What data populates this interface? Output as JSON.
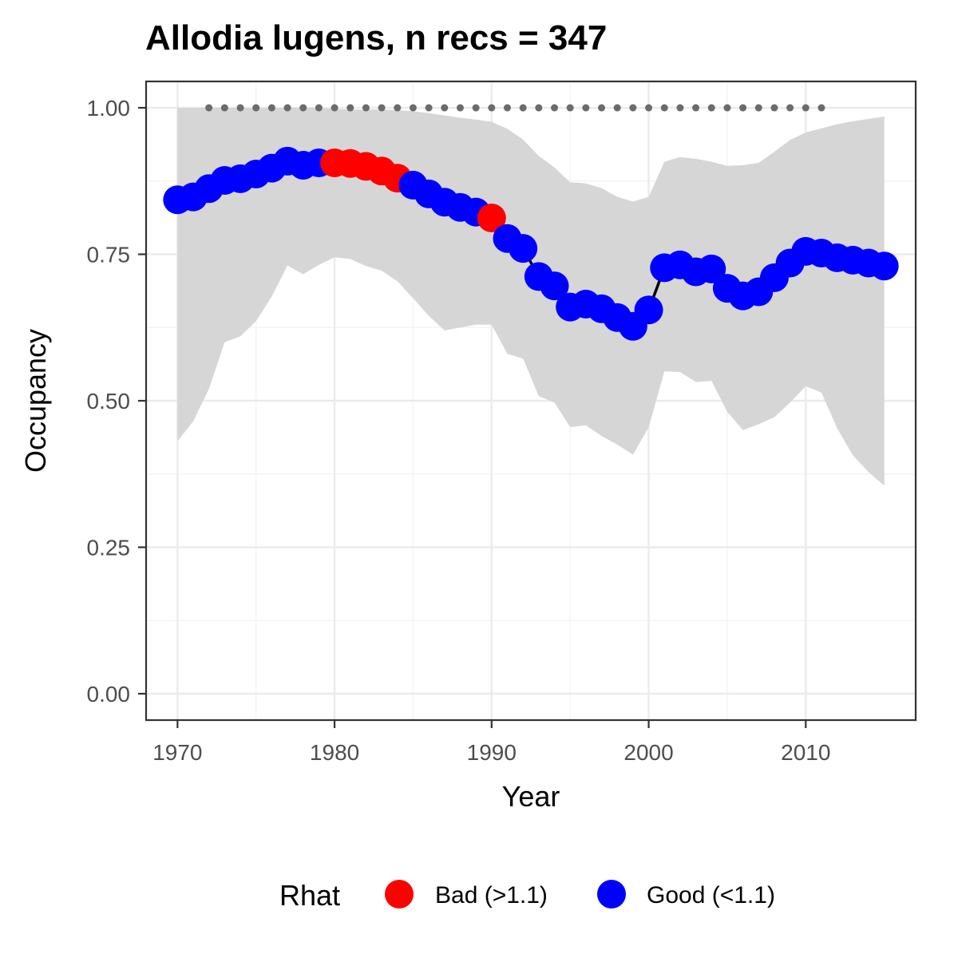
{
  "chart_data": {
    "type": "line",
    "title": "Allodia lugens, n recs = 347",
    "xlabel": "Year",
    "ylabel": "Occupancy",
    "xlim": [
      1968,
      2017
    ],
    "ylim": [
      -0.045,
      1.045
    ],
    "x_ticks": [
      1970,
      1980,
      1990,
      2000,
      2010
    ],
    "x_tick_labels": [
      "1970",
      "1980",
      "1990",
      "2000",
      "2010"
    ],
    "y_ticks": [
      0,
      0.25,
      0.5,
      0.75,
      1.0
    ],
    "y_tick_labels": [
      "0.00",
      "0.25",
      "0.50",
      "0.75",
      "1.00"
    ],
    "grid": true,
    "legend": {
      "title": "Rhat",
      "position": "bottom",
      "entries": [
        {
          "label": "Bad (>1.1)",
          "color": "#ff0000"
        },
        {
          "label": "Good (<1.1)",
          "color": "#0000ff"
        }
      ]
    },
    "colors": {
      "bad": "#ff0000",
      "good": "#0000ff",
      "ribbon": "#d6d6d6",
      "line": "#000000",
      "dots": "#6b6b6b"
    },
    "years": [
      1970,
      1971,
      1972,
      1973,
      1974,
      1975,
      1976,
      1977,
      1978,
      1979,
      1980,
      1981,
      1982,
      1983,
      1984,
      1985,
      1986,
      1987,
      1988,
      1989,
      1990,
      1991,
      1992,
      1993,
      1994,
      1995,
      1996,
      1997,
      1998,
      1999,
      2000,
      2001,
      2002,
      2003,
      2004,
      2005,
      2006,
      2007,
      2008,
      2009,
      2010,
      2011,
      2012,
      2013,
      2014,
      2015
    ],
    "occupancy": [
      0.843,
      0.848,
      0.862,
      0.876,
      0.879,
      0.887,
      0.897,
      0.909,
      0.902,
      0.906,
      0.906,
      0.905,
      0.9,
      0.892,
      0.88,
      0.868,
      0.853,
      0.839,
      0.83,
      0.822,
      0.812,
      0.777,
      0.76,
      0.712,
      0.696,
      0.66,
      0.665,
      0.657,
      0.642,
      0.627,
      0.655,
      0.727,
      0.732,
      0.72,
      0.725,
      0.692,
      0.679,
      0.686,
      0.71,
      0.735,
      0.755,
      0.752,
      0.744,
      0.74,
      0.735,
      0.73
    ],
    "rhat_status": [
      "good",
      "good",
      "good",
      "good",
      "good",
      "good",
      "good",
      "good",
      "good",
      "good",
      "bad",
      "bad",
      "bad",
      "bad",
      "bad",
      "good",
      "good",
      "good",
      "good",
      "good",
      "bad",
      "good",
      "good",
      "good",
      "good",
      "good",
      "good",
      "good",
      "good",
      "good",
      "good",
      "good",
      "good",
      "good",
      "good",
      "good",
      "good",
      "good",
      "good",
      "good",
      "good",
      "good",
      "good",
      "good",
      "good",
      "good"
    ],
    "upper_ci": [
      1.0,
      1.0,
      1.0,
      1.0,
      1.0,
      1.0,
      1.0,
      1.0,
      1.0,
      1.0,
      0.998,
      0.997,
      0.997,
      0.997,
      0.996,
      0.994,
      0.991,
      0.987,
      0.983,
      0.98,
      0.976,
      0.964,
      0.946,
      0.918,
      0.898,
      0.873,
      0.871,
      0.863,
      0.848,
      0.84,
      0.848,
      0.908,
      0.916,
      0.913,
      0.908,
      0.901,
      0.902,
      0.906,
      0.925,
      0.945,
      0.958,
      0.965,
      0.972,
      0.977,
      0.981,
      0.985
    ],
    "lower_ci": [
      0.431,
      0.465,
      0.52,
      0.6,
      0.61,
      0.636,
      0.678,
      0.731,
      0.716,
      0.732,
      0.745,
      0.742,
      0.73,
      0.722,
      0.704,
      0.675,
      0.645,
      0.62,
      0.625,
      0.63,
      0.63,
      0.58,
      0.572,
      0.508,
      0.497,
      0.455,
      0.458,
      0.44,
      0.425,
      0.408,
      0.455,
      0.55,
      0.549,
      0.532,
      0.534,
      0.481,
      0.45,
      0.46,
      0.472,
      0.497,
      0.525,
      0.514,
      0.453,
      0.407,
      0.378,
      0.355
    ],
    "record_years": [
      1972,
      1973,
      1974,
      1975,
      1976,
      1977,
      1978,
      1979,
      1980,
      1981,
      1982,
      1983,
      1984,
      1985,
      1986,
      1987,
      1988,
      1989,
      1990,
      1991,
      1992,
      1993,
      1994,
      1995,
      1996,
      1997,
      1998,
      1999,
      2000,
      2001,
      2002,
      2003,
      2004,
      2005,
      2006,
      2007,
      2008,
      2009,
      2010,
      2011
    ],
    "record_value": 1.0
  }
}
